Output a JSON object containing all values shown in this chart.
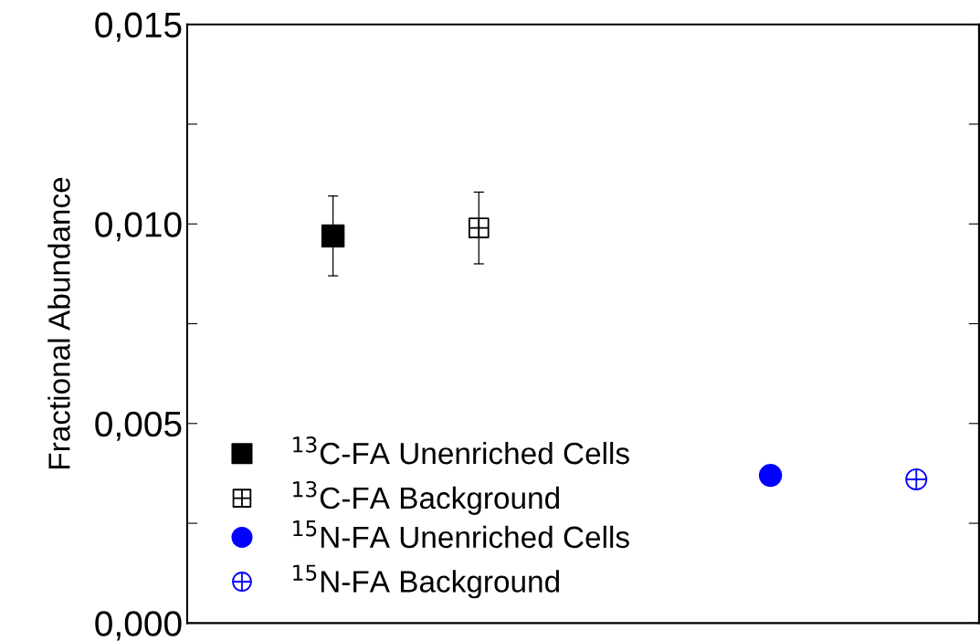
{
  "chart_data": {
    "type": "scatter",
    "ylabel": "Fractional Abundance",
    "categories": [
      null,
      null,
      null,
      null,
      null
    ],
    "series": [
      {
        "name": "$^{13}$C-FA Unenriched Cells",
        "color": "#000000",
        "marker": "square",
        "values": [
          0.0097,
          null,
          null,
          null,
          null
        ],
        "errors": [
          0.001,
          null,
          null,
          null,
          null
        ]
      },
      {
        "name": "$^{13}$C-FA Background",
        "color": "#000000",
        "marker": "square",
        "values": [
          null,
          0.0099,
          null,
          null,
          null
        ],
        "errors": [
          null,
          0.0009,
          null,
          null,
          null
        ]
      },
      {
        "name": "$^{15}$N-FA Unenriched Cells",
        "color": "#0000ff",
        "marker": "circle",
        "values": [
          null,
          null,
          null,
          0.0037,
          null
        ]
      },
      {
        "name": "$^{15}$N-FA Background",
        "color": "#0000ff",
        "marker": "circle",
        "values": [
          null,
          null,
          null,
          null,
          0.0036
        ]
      }
    ],
    "ylim": [
      0,
      0.015
    ],
    "yticks": [
      {
        "value": 0,
        "label": "0,000"
      },
      {
        "value": 0.0025,
        "label": null
      },
      {
        "value": 0.005,
        "label": "0,005"
      },
      {
        "value": 0.0075,
        "label": null
      },
      {
        "value": 0.01,
        "label": "0,010"
      },
      {
        "value": 0.0125,
        "label": null
      },
      {
        "value": 0.015,
        "label": "0,015"
      }
    ],
    "tick_labels": "y",
    "legend": "bottom left",
    "grid": false
  }
}
